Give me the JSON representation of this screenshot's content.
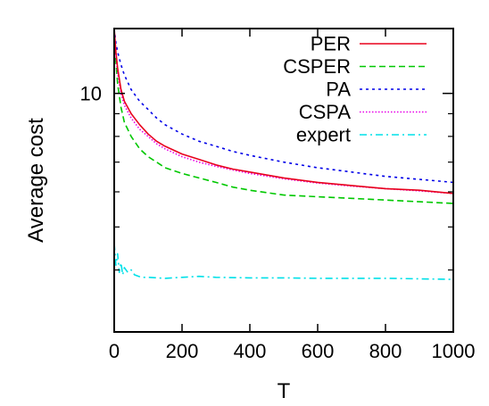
{
  "chart_data": {
    "type": "line",
    "title": "",
    "xlabel": "T",
    "ylabel": "Average cost",
    "xlim": [
      0,
      1000
    ],
    "ylim": [
      2.9,
      14.0
    ],
    "y_scale": "log",
    "grid": false,
    "legend_position": "top-right",
    "x_ticks": [
      0,
      200,
      400,
      600,
      800,
      1000
    ],
    "x_tick_labels": [
      "0",
      "200",
      "400",
      "600",
      "800",
      "1000"
    ],
    "y_ticks": [
      10
    ],
    "y_tick_labels": [
      "10"
    ],
    "y_minor_ticks": [
      4,
      5,
      6,
      7,
      8,
      9
    ],
    "series": [
      {
        "name": "PER",
        "color": "#e8001c",
        "style": "solid",
        "x": [
          0,
          5,
          10,
          20,
          30,
          50,
          75,
          100,
          125,
          150,
          200,
          250,
          300,
          350,
          400,
          500,
          600,
          700,
          800,
          900,
          1000
        ],
        "y": [
          14.0,
          12.4,
          11.4,
          10.2,
          9.6,
          9.0,
          8.5,
          8.1,
          7.8,
          7.6,
          7.3,
          7.1,
          6.9,
          6.75,
          6.65,
          6.45,
          6.3,
          6.2,
          6.1,
          6.05,
          5.95
        ]
      },
      {
        "name": "CSPER",
        "color": "#00c800",
        "style": "dashed",
        "x": [
          0,
          5,
          10,
          20,
          30,
          50,
          75,
          100,
          125,
          150,
          200,
          250,
          300,
          350,
          400,
          500,
          600,
          700,
          800,
          900,
          1000
        ],
        "y": [
          14.0,
          11.8,
          10.5,
          9.3,
          8.6,
          8.0,
          7.5,
          7.2,
          7.0,
          6.8,
          6.6,
          6.45,
          6.3,
          6.15,
          6.05,
          5.9,
          5.85,
          5.8,
          5.75,
          5.7,
          5.65
        ]
      },
      {
        "name": "PA",
        "color": "#0000e8",
        "style": "dotted",
        "x": [
          0,
          5,
          10,
          20,
          30,
          50,
          75,
          100,
          125,
          150,
          200,
          250,
          300,
          350,
          400,
          500,
          600,
          700,
          800,
          900,
          1000
        ],
        "y": [
          14.0,
          13.0,
          12.4,
          11.6,
          11.0,
          10.2,
          9.6,
          9.2,
          8.8,
          8.5,
          8.1,
          7.8,
          7.6,
          7.4,
          7.25,
          7.0,
          6.8,
          6.65,
          6.5,
          6.4,
          6.3
        ]
      },
      {
        "name": "CSPA",
        "color": "#e800e8",
        "style": "dotted-fine",
        "x": [
          0,
          5,
          10,
          20,
          30,
          50,
          75,
          100,
          125,
          150,
          200,
          250,
          300,
          350,
          400,
          500,
          600,
          700,
          800,
          900,
          1000
        ],
        "y": [
          14.0,
          12.2,
          11.1,
          10.0,
          9.4,
          8.8,
          8.3,
          8.0,
          7.7,
          7.5,
          7.2,
          7.0,
          6.85,
          6.72,
          6.6,
          6.42,
          6.28,
          6.18,
          6.1,
          6.03,
          5.95
        ]
      },
      {
        "name": "expert",
        "color": "#00e0e8",
        "style": "dash-dot",
        "x": [
          0,
          5,
          10,
          15,
          20,
          25,
          30,
          40,
          50,
          60,
          80,
          100,
          125,
          150,
          200,
          250,
          300,
          400,
          500,
          600,
          700,
          800,
          900,
          1000
        ],
        "y": [
          4.6,
          4.1,
          4.35,
          3.95,
          4.15,
          3.9,
          4.05,
          3.95,
          4.0,
          3.9,
          3.85,
          3.85,
          3.84,
          3.83,
          3.85,
          3.87,
          3.85,
          3.84,
          3.84,
          3.83,
          3.83,
          3.83,
          3.82,
          3.81
        ]
      }
    ]
  }
}
